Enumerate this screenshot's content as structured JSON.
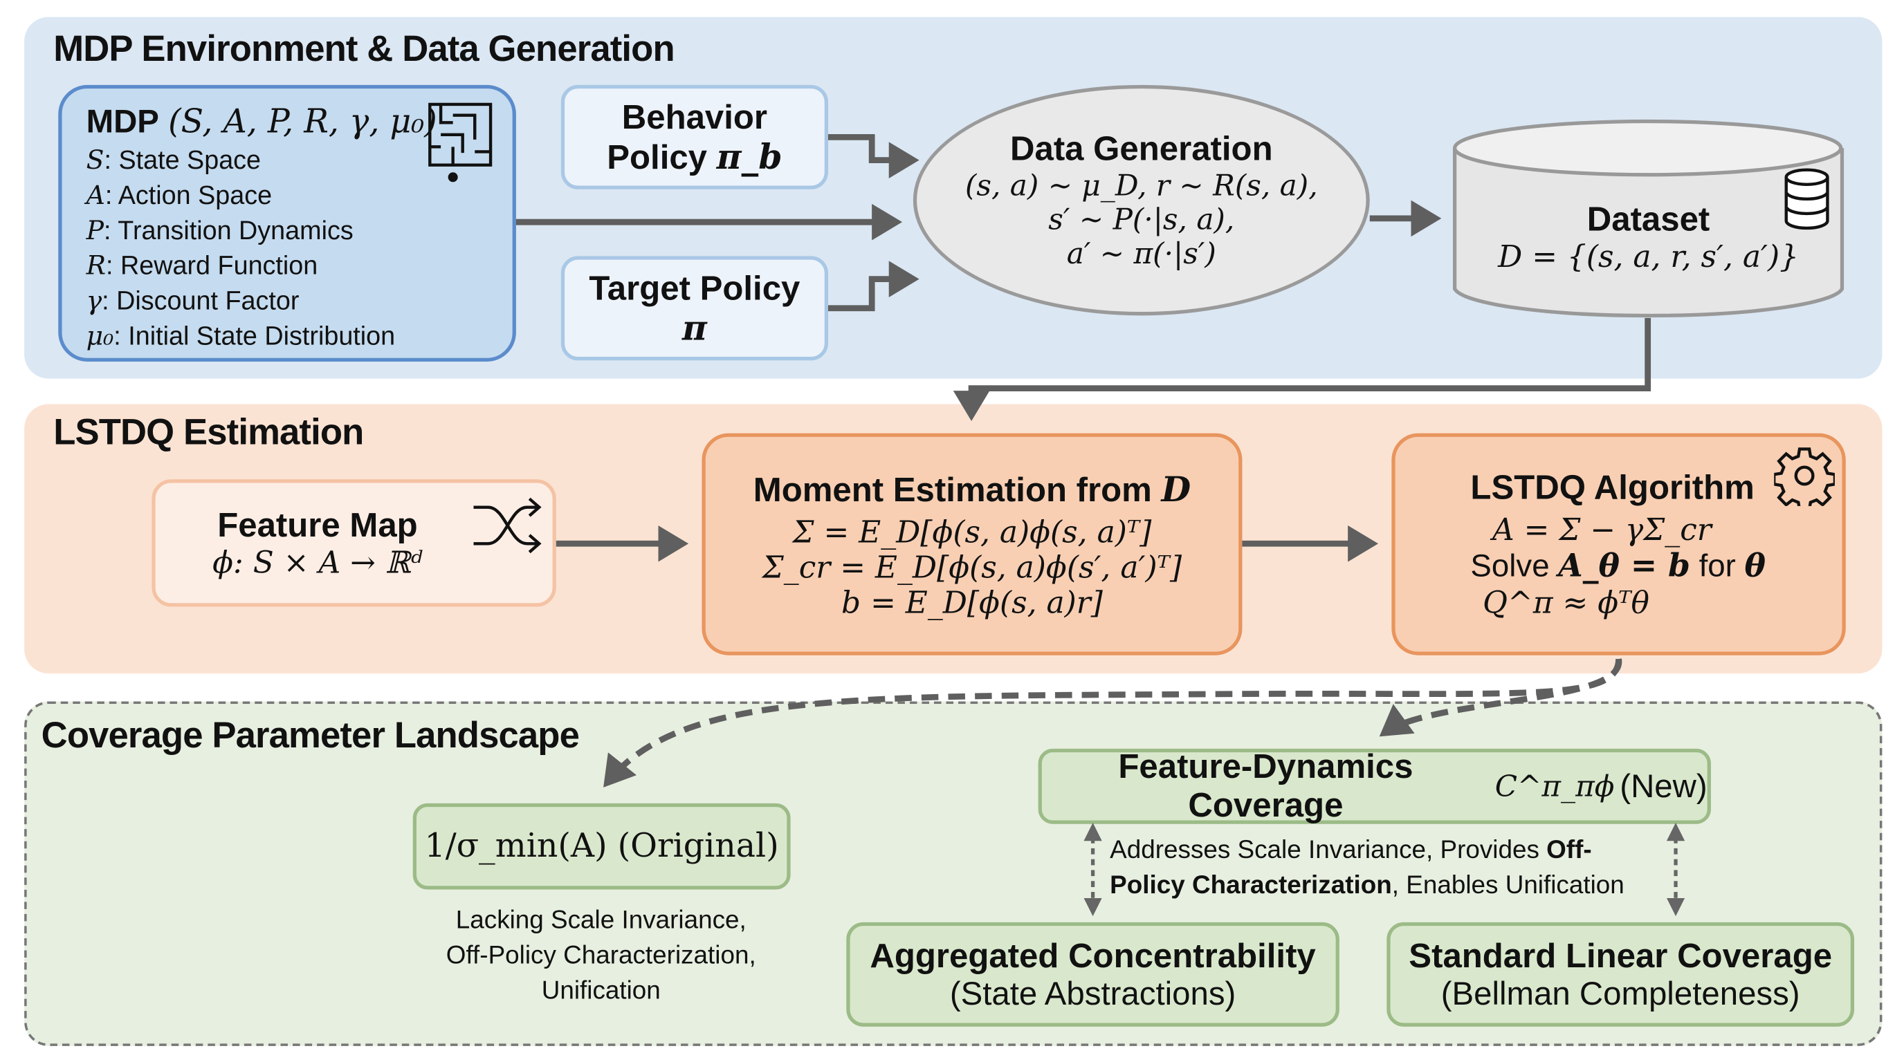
{
  "sections": {
    "mdp": {
      "title": "MDP Environment & Data Generation"
    },
    "lstdq": {
      "title": "LSTDQ Estimation"
    },
    "coverage": {
      "title": "Coverage Parameter Landscape"
    }
  },
  "mdp_box": {
    "title": "MDP",
    "tuple": "(S, A, P, R, γ, μ₀)",
    "items": [
      {
        "sym": "S",
        "text": ": State Space"
      },
      {
        "sym": "A",
        "text": ": Action Space"
      },
      {
        "sym": "P",
        "text": ": Transition Dynamics"
      },
      {
        "sym": "R",
        "text": ": Reward Function"
      },
      {
        "sym": "γ",
        "text": ": Discount Factor"
      },
      {
        "sym": "μ₀",
        "text": ": Initial State Distribution"
      }
    ],
    "icon": "maze-icon"
  },
  "behavior_policy": {
    "line1": "Behavior",
    "line2": "Policy",
    "sym": "π_b"
  },
  "target_policy": {
    "line1": "Target Policy",
    "sym": "π"
  },
  "data_generation": {
    "title": "Data Generation",
    "lines": [
      "(s, a) ~ μ_D, r ~ R(s, a),",
      "s′ ~ P(·|s, a),",
      "a′ ~ π(·|s′)"
    ]
  },
  "dataset": {
    "title": "Dataset",
    "formula": "D = {(s, a, r, s′, a′)}",
    "icon": "database-icon"
  },
  "feature_map": {
    "title": "Feature Map",
    "formula": "ϕ: S × A → ℝᵈ",
    "icon": "shuffle-icon"
  },
  "moment": {
    "title": "Moment Estimation from",
    "title_sym": "D",
    "lines": [
      "Σ = E_D[ϕ(s, a)ϕ(s, a)ᵀ]",
      "Σ_cr = E_D[ϕ(s, a)ϕ(s′, a′)ᵀ]",
      "b = E_D[ϕ(s, a)r]"
    ]
  },
  "lstdq_box": {
    "title": "LSTDQ Algorithm",
    "icon": "gear-icon",
    "line1": "A = Σ − γΣ_cr",
    "line2_a": "Solve",
    "line2_sym1": "A_θ = b",
    "line2_b": "for",
    "line2_sym2": "θ",
    "line3": "Q^π ≈ ϕᵀθ"
  },
  "original": {
    "label": "1/σ_min(A) (Original)",
    "note": [
      "Lacking Scale Invariance,",
      "Off-Policy Characterization,",
      "Unification"
    ]
  },
  "feature_dynamics": {
    "label": "Feature-Dynamics Coverage",
    "sym": "C^π_πϕ",
    "suffix": "(New)",
    "note_a": "Addresses Scale Invariance, Provides ",
    "note_b": "Off-Policy Characterization",
    "note_c": ", Enables Unification"
  },
  "aggregated": {
    "line1": "Aggregated Concentrability",
    "line2": "(State Abstractions)"
  },
  "standard": {
    "line1": "Standard Linear Coverage",
    "line2": "(Bellman Completeness)"
  },
  "colors": {
    "blue_bg": "#dbe7f3",
    "orange_bg": "#fbe3d3",
    "green_bg": "#e7efe0",
    "arrow": "#5f5f5f"
  }
}
